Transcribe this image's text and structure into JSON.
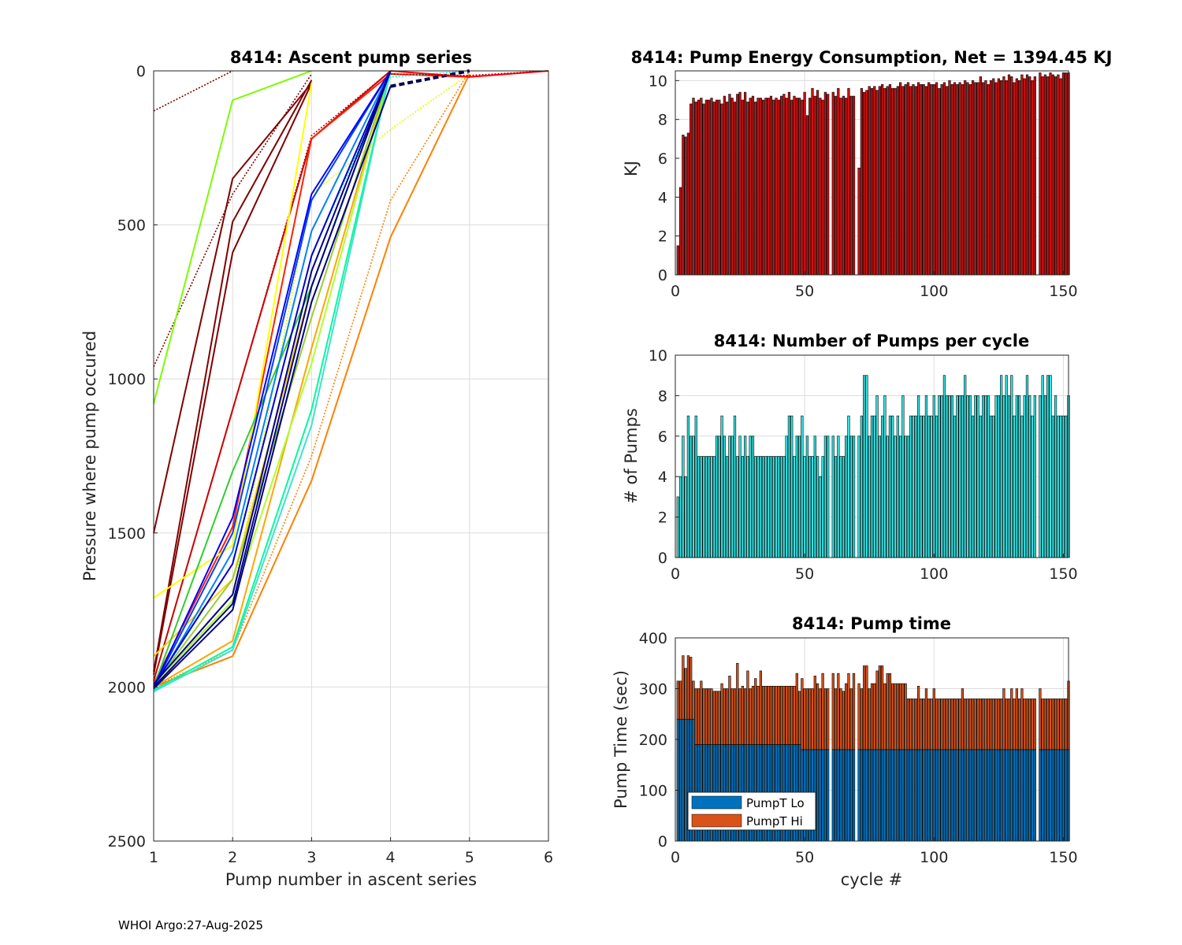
{
  "footer": "WHOI Argo:27-Aug-2025",
  "chart_data": [
    {
      "id": "ascent",
      "type": "line",
      "title": "8414: Ascent pump series",
      "xlabel": "Pump number in ascent series",
      "ylabel": "Pressure where pump occured",
      "xlim": [
        1,
        6
      ],
      "ylim": [
        0,
        2500
      ],
      "y_reversed": true,
      "xticks": [
        "1",
        "2",
        "3",
        "4",
        "5",
        "6"
      ],
      "yticks": [
        "0",
        "500",
        "1000",
        "1500",
        "2000",
        "2500"
      ],
      "colormap": "jet (early cycles dark red, late cycles dark blue)",
      "series": [
        {
          "name": "c1",
          "color": "#800000",
          "style": "dotted",
          "x": [
            1,
            2
          ],
          "y": [
            130,
            0
          ]
        },
        {
          "name": "c2",
          "color": "#800000",
          "style": "dotted",
          "x": [
            1,
            2,
            3
          ],
          "y": [
            960,
            400,
            10
          ]
        },
        {
          "name": "c3",
          "color": "#800000",
          "style": "solid",
          "x": [
            1,
            2,
            3
          ],
          "y": [
            1500,
            350,
            40
          ]
        },
        {
          "name": "c4",
          "color": "#800000",
          "style": "solid",
          "x": [
            1,
            2,
            3
          ],
          "y": [
            1950,
            490,
            30
          ]
        },
        {
          "name": "c5",
          "color": "#800000",
          "style": "solid",
          "x": [
            1,
            2,
            3
          ],
          "y": [
            1960,
            590,
            40
          ]
        },
        {
          "name": "c6",
          "color": "#7CFC00",
          "style": "solid",
          "x": [
            1,
            2,
            3
          ],
          "y": [
            1080,
            95,
            0
          ]
        },
        {
          "name": "c7",
          "color": "#CC0000",
          "style": "solid",
          "x": [
            1,
            2,
            3,
            4
          ],
          "y": [
            1980,
            1100,
            220,
            0
          ]
        },
        {
          "name": "c8",
          "color": "#CC0000",
          "style": "dotted",
          "x": [
            1,
            2,
            3,
            4
          ],
          "y": [
            1980,
            1100,
            210,
            0
          ]
        },
        {
          "name": "c9",
          "color": "#FF2000",
          "style": "solid",
          "x": [
            1,
            2,
            3,
            4,
            5
          ],
          "y": [
            1990,
            1480,
            220,
            10,
            20
          ]
        },
        {
          "name": "c10",
          "color": "#FFFF00",
          "style": "solid",
          "x": [
            1,
            2,
            3
          ],
          "y": [
            1710,
            1540,
            40
          ]
        },
        {
          "name": "c11",
          "color": "#FFD000",
          "style": "solid",
          "x": [
            1,
            2,
            3,
            4
          ],
          "y": [
            1900,
            1650,
            700,
            0
          ]
        },
        {
          "name": "c12",
          "color": "#E0FF00",
          "style": "dotted",
          "x": [
            1,
            2,
            3,
            4,
            5
          ],
          "y": [
            2000,
            1700,
            400,
            190,
            10
          ]
        },
        {
          "name": "c13",
          "color": "#FF8000",
          "style": "solid",
          "x": [
            1,
            2,
            3,
            4,
            5
          ],
          "y": [
            2000,
            1900,
            1330,
            540,
            10
          ]
        },
        {
          "name": "c14",
          "color": "#FF8000",
          "style": "dotted",
          "x": [
            1,
            2,
            3,
            4,
            5
          ],
          "y": [
            2000,
            1880,
            1250,
            420,
            0
          ]
        },
        {
          "name": "c15",
          "color": "#FFA500",
          "style": "solid",
          "x": [
            1,
            2,
            3,
            4
          ],
          "y": [
            2000,
            1850,
            900,
            0
          ]
        },
        {
          "name": "c16",
          "color": "#ADFF2F",
          "style": "solid",
          "x": [
            1,
            2,
            3,
            4
          ],
          "y": [
            1990,
            1720,
            950,
            0
          ]
        },
        {
          "name": "c17",
          "color": "#9ACD32",
          "style": "solid",
          "x": [
            1,
            2,
            3,
            4
          ],
          "y": [
            1995,
            1650,
            800,
            0
          ]
        },
        {
          "name": "c18",
          "color": "#00FA9A",
          "style": "solid",
          "x": [
            1,
            2,
            3,
            4
          ],
          "y": [
            2010,
            1870,
            1100,
            0
          ]
        },
        {
          "name": "c19",
          "color": "#40E0D0",
          "style": "solid",
          "x": [
            1,
            2,
            3,
            4
          ],
          "y": [
            2015,
            1880,
            1150,
            0
          ]
        },
        {
          "name": "c20",
          "color": "#32CD32",
          "style": "solid",
          "x": [
            1,
            2,
            3,
            4
          ],
          "y": [
            2000,
            1300,
            700,
            0
          ]
        },
        {
          "name": "c21",
          "color": "#00FFFF",
          "style": "dotted",
          "x": [
            1,
            2,
            3,
            4,
            5
          ],
          "y": [
            2000,
            1600,
            600,
            20,
            0
          ]
        },
        {
          "name": "c22",
          "color": "#0080FF",
          "style": "solid",
          "x": [
            1,
            2,
            3,
            4
          ],
          "y": [
            2005,
            1560,
            520,
            0
          ]
        },
        {
          "name": "c23",
          "color": "#0040FF",
          "style": "solid",
          "x": [
            1,
            2,
            3,
            4
          ],
          "y": [
            2000,
            1500,
            420,
            0
          ]
        },
        {
          "name": "c24",
          "color": "#0000FF",
          "style": "solid",
          "x": [
            1,
            2,
            3,
            4
          ],
          "y": [
            2000,
            1450,
            400,
            0
          ]
        },
        {
          "name": "c25",
          "color": "#0000CD",
          "style": "solid",
          "x": [
            1,
            2,
            3,
            4
          ],
          "y": [
            1995,
            1600,
            600,
            0
          ]
        },
        {
          "name": "c26",
          "color": "#00008B",
          "style": "solid",
          "x": [
            1,
            2,
            3,
            4
          ],
          "y": [
            1990,
            1700,
            650,
            0
          ]
        },
        {
          "name": "c27",
          "color": "#00008B",
          "style": "solid",
          "x": [
            1,
            2,
            3,
            4
          ],
          "y": [
            2000,
            1730,
            700,
            0
          ]
        },
        {
          "name": "c28",
          "color": "#000080",
          "style": "solid",
          "x": [
            1,
            2,
            3,
            4
          ],
          "y": [
            2005,
            1750,
            750,
            50
          ]
        },
        {
          "name": "c29",
          "color": "#000050",
          "style": "dashed",
          "x": [
            4,
            5
          ],
          "y": [
            50,
            0
          ]
        },
        {
          "name": "c30",
          "color": "#FF0000",
          "style": "solid",
          "x": [
            4,
            5,
            6
          ],
          "y": [
            0,
            20,
            0
          ]
        },
        {
          "name": "c31",
          "color": "#B00000",
          "style": "dotted",
          "x": [
            4,
            5,
            6
          ],
          "y": [
            10,
            15,
            0
          ]
        }
      ]
    },
    {
      "id": "energy",
      "type": "bar",
      "title": "8414: Pump Energy Consumption,  Net = 1394.45 KJ",
      "xlabel": "",
      "ylabel": "KJ",
      "xlim": [
        0,
        152
      ],
      "ylim": [
        0,
        10.5
      ],
      "xticks": [
        "0",
        "50",
        "100",
        "150"
      ],
      "yticks": [
        "0",
        "2",
        "4",
        "6",
        "8",
        "10"
      ],
      "color": "#CC1111",
      "values": [
        1.5,
        4.5,
        7.2,
        7.1,
        7.3,
        8.8,
        9.1,
        8.9,
        9.0,
        9.1,
        8.8,
        9.0,
        9.0,
        9.1,
        8.9,
        9.0,
        9.0,
        8.8,
        9.2,
        8.9,
        9.3,
        9.1,
        8.9,
        9.3,
        9.4,
        9.0,
        9.4,
        8.9,
        9.1,
        9.2,
        8.9,
        9.1,
        9.1,
        9.0,
        9.1,
        9.1,
        9.2,
        9.0,
        9.1,
        9.0,
        9.2,
        9.3,
        9.1,
        9.4,
        9.0,
        9.2,
        9.1,
        9.1,
        9.0,
        9.4,
        8.2,
        9.1,
        9.6,
        9.2,
        9.5,
        9.1,
        9.0,
        9.4,
        9.3,
        0,
        9.4,
        9.2,
        9.6,
        9.1,
        9.2,
        9.1,
        9.6,
        9.2,
        9.2,
        0,
        5.5,
        9.6,
        9.4,
        9.5,
        9.7,
        9.6,
        9.7,
        9.5,
        9.7,
        9.8,
        9.6,
        9.7,
        9.8,
        9.6,
        9.6,
        9.7,
        9.9,
        9.7,
        9.8,
        9.9,
        9.7,
        9.8,
        9.7,
        9.9,
        9.8,
        9.8,
        9.7,
        9.9,
        9.8,
        9.8,
        9.9,
        9.6,
        9.8,
        9.9,
        9.7,
        10.0,
        9.8,
        9.9,
        9.8,
        9.9,
        9.8,
        10.0,
        9.9,
        9.8,
        10.0,
        9.9,
        9.9,
        10.2,
        9.9,
        10.0,
        9.8,
        10.0,
        10.1,
        9.9,
        10.1,
        10.0,
        10.2,
        10.0,
        10.3,
        10.2,
        9.9,
        10.1,
        10.0,
        10.3,
        10.1,
        10.3,
        10.2,
        10.0,
        10.2,
        0,
        10.4,
        10.2,
        10.3,
        10.2,
        10.4,
        10.3,
        10.2,
        10.3,
        10.1,
        10.4,
        10.4,
        10.4
      ]
    },
    {
      "id": "npumps",
      "type": "bar",
      "title": "8414: Number of Pumps per cycle",
      "xlabel": "",
      "ylabel": "# of Pumps",
      "xlim": [
        0,
        152
      ],
      "ylim": [
        0,
        10
      ],
      "xticks": [
        "0",
        "50",
        "100",
        "150"
      ],
      "yticks": [
        "0",
        "2",
        "4",
        "6",
        "8",
        "10"
      ],
      "color": "#33E6E6",
      "values": [
        3,
        4,
        6,
        4,
        7,
        6,
        6,
        7,
        5,
        5,
        5,
        5,
        5,
        5,
        5,
        6,
        6,
        7,
        6,
        5,
        6,
        6,
        7,
        5,
        6,
        5,
        6,
        5,
        6,
        6,
        5,
        5,
        5,
        5,
        5,
        5,
        5,
        5,
        5,
        5,
        5,
        5,
        6,
        7,
        7,
        5,
        6,
        6,
        7,
        5,
        6,
        5,
        5,
        6,
        5,
        4,
        5,
        6,
        6,
        0,
        6,
        5,
        6,
        5,
        5,
        6,
        7,
        6,
        6,
        0,
        6,
        7,
        9,
        9,
        6,
        7,
        7,
        8,
        6,
        7,
        8,
        6,
        7,
        7,
        6,
        7,
        6,
        8,
        6,
        6,
        7,
        7,
        7,
        8,
        7,
        7,
        8,
        7,
        7,
        8,
        7,
        8,
        8,
        9,
        8,
        8,
        8,
        7,
        8,
        8,
        8,
        9,
        8,
        8,
        7,
        8,
        8,
        7,
        8,
        8,
        8,
        7,
        7,
        8,
        8,
        9,
        8,
        9,
        8,
        9,
        7,
        8,
        8,
        7,
        8,
        9,
        8,
        7,
        8,
        0,
        8,
        9,
        8,
        9,
        9,
        7,
        8,
        7,
        7,
        7,
        7,
        8
      ]
    },
    {
      "id": "pumptime",
      "type": "bar",
      "stacked": true,
      "title": "8414: Pump time",
      "xlabel": "cycle #",
      "ylabel": "Pump Time (sec)",
      "xlim": [
        0,
        152
      ],
      "ylim": [
        0,
        400
      ],
      "xticks": [
        "0",
        "50",
        "100",
        "150"
      ],
      "yticks": [
        "0",
        "100",
        "200",
        "300",
        "400"
      ],
      "legend": [
        {
          "name": "PumpT Lo",
          "color": "#0072BD"
        },
        {
          "name": "PumpT Hi",
          "color": "#D95319"
        }
      ],
      "legend_location": "bottom-left",
      "lo": [
        240,
        240,
        240,
        240,
        240,
        240,
        240,
        190,
        190,
        190,
        190,
        190,
        190,
        190,
        190,
        190,
        190,
        190,
        190,
        190,
        190,
        190,
        190,
        190,
        190,
        190,
        190,
        190,
        190,
        190,
        190,
        190,
        190,
        190,
        190,
        190,
        190,
        190,
        190,
        190,
        190,
        190,
        190,
        190,
        190,
        190,
        190,
        190,
        180,
        180,
        180,
        180,
        180,
        180,
        180,
        180,
        180,
        180,
        180,
        0,
        180,
        180,
        180,
        180,
        180,
        180,
        180,
        180,
        180,
        0,
        180,
        180,
        180,
        180,
        180,
        180,
        180,
        180,
        180,
        180,
        180,
        180,
        180,
        180,
        180,
        180,
        180,
        180,
        180,
        180,
        180,
        180,
        180,
        180,
        180,
        180,
        180,
        180,
        180,
        180,
        180,
        180,
        180,
        180,
        180,
        180,
        180,
        180,
        180,
        180,
        180,
        180,
        180,
        180,
        180,
        180,
        180,
        180,
        180,
        180,
        180,
        180,
        180,
        180,
        180,
        180,
        180,
        180,
        180,
        180,
        180,
        180,
        180,
        180,
        180,
        180,
        180,
        180,
        180,
        0,
        180,
        180,
        180,
        180,
        180,
        180,
        180,
        180,
        180,
        180,
        180,
        180
      ],
      "total": [
        315,
        315,
        365,
        340,
        365,
        362,
        315,
        300,
        300,
        315,
        300,
        300,
        300,
        300,
        295,
        295,
        295,
        310,
        300,
        300,
        325,
        300,
        300,
        350,
        300,
        305,
        300,
        335,
        300,
        305,
        320,
        305,
        335,
        305,
        305,
        305,
        305,
        305,
        305,
        305,
        305,
        305,
        305,
        305,
        305,
        305,
        330,
        295,
        320,
        300,
        300,
        300,
        300,
        325,
        310,
        300,
        330,
        300,
        300,
        0,
        330,
        300,
        330,
        300,
        295,
        310,
        330,
        300,
        330,
        0,
        310,
        300,
        345,
        345,
        300,
        310,
        310,
        335,
        345,
        345,
        310,
        330,
        330,
        310,
        310,
        310,
        310,
        310,
        310,
        280,
        280,
        280,
        280,
        305,
        280,
        280,
        300,
        280,
        280,
        300,
        280,
        280,
        280,
        280,
        280,
        280,
        280,
        280,
        280,
        280,
        300,
        280,
        280,
        280,
        280,
        280,
        280,
        280,
        280,
        280,
        280,
        280,
        280,
        280,
        280,
        280,
        300,
        280,
        280,
        300,
        280,
        300,
        280,
        300,
        280,
        280,
        280,
        280,
        280,
        0,
        300,
        280,
        280,
        280,
        280,
        280,
        280,
        280,
        280,
        280,
        280,
        315
      ]
    }
  ]
}
